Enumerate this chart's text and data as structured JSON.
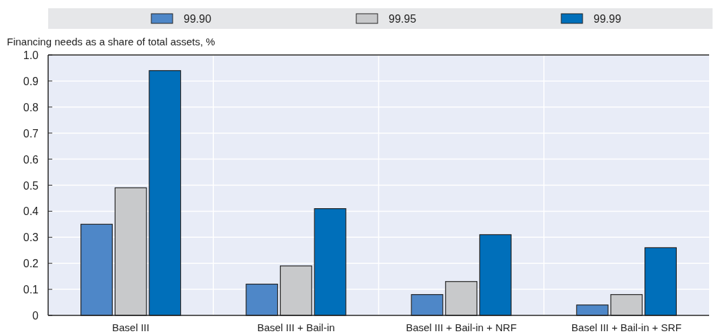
{
  "chart_data": {
    "type": "bar",
    "ylabel": "Financing needs as a share of total assets, %",
    "categories": [
      "Basel III",
      "Basel III + Bail-in",
      "Basel III + Bail-in + NRF",
      "Basel III + Bail-in + SRF"
    ],
    "series": [
      {
        "name": "99.90",
        "color": "#4e87c8",
        "values": [
          0.35,
          0.12,
          0.08,
          0.04
        ]
      },
      {
        "name": "99.95",
        "color": "#c8c9cb",
        "values": [
          0.49,
          0.19,
          0.13,
          0.08
        ]
      },
      {
        "name": "99.99",
        "color": "#006fba",
        "values": [
          0.94,
          0.41,
          0.31,
          0.26
        ]
      }
    ],
    "ylim": [
      0,
      1
    ],
    "yticks": [
      0,
      {
        "value": 0.1,
        "label": "0.1"
      },
      {
        "value": 0.2,
        "label": "0.2"
      },
      {
        "value": 0.3,
        "label": "0.3"
      },
      {
        "value": 0.4,
        "label": "0.4"
      },
      {
        "value": 0.5,
        "label": "0.5"
      },
      {
        "value": 0.6,
        "label": "0.6"
      },
      {
        "value": 0.7,
        "label": "0.7"
      },
      {
        "value": 0.8,
        "label": "0.8"
      },
      {
        "value": 0.9,
        "label": "0.9"
      },
      {
        "value": 1,
        "label": "1.0"
      }
    ],
    "grid": true,
    "legend": "top"
  }
}
